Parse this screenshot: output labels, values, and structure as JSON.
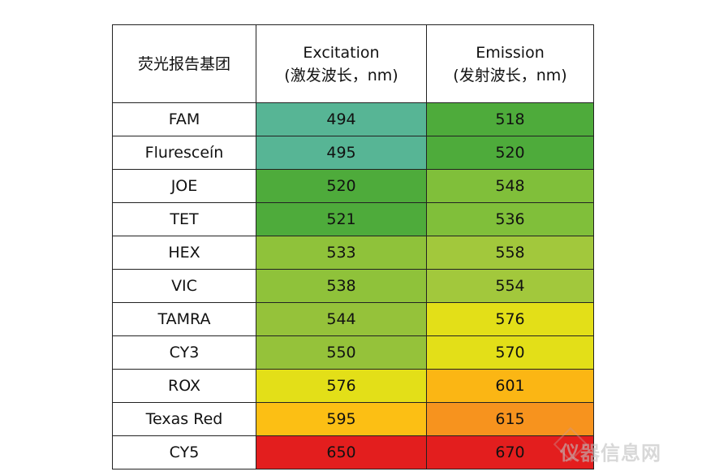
{
  "header": {
    "col1": "荧光报告基团",
    "col2_line1": "Excitation",
    "col2_line2": "(激发波长，nm)",
    "col3_line1": "Emission",
    "col3_line2": "(发射波长，nm)"
  },
  "rows": [
    {
      "name": "FAM",
      "ex": "494",
      "em": "518",
      "ex_color": "#57b595",
      "em_color": "#4eab3b"
    },
    {
      "name": "Fluresceín",
      "ex": "495",
      "em": "520",
      "ex_color": "#57b595",
      "em_color": "#4eab3b"
    },
    {
      "name": "JOE",
      "ex": "520",
      "em": "548",
      "ex_color": "#4eab3b",
      "em_color": "#80bf3a"
    },
    {
      "name": "TET",
      "ex": "521",
      "em": "536",
      "ex_color": "#4eab3b",
      "em_color": "#80bf3a"
    },
    {
      "name": "HEX",
      "ex": "533",
      "em": "558",
      "ex_color": "#8fc23a",
      "em_color": "#a2c83c"
    },
    {
      "name": "VIC",
      "ex": "538",
      "em": "554",
      "ex_color": "#8fc23a",
      "em_color": "#a2c83c"
    },
    {
      "name": "TAMRA",
      "ex": "544",
      "em": "576",
      "ex_color": "#95c23a",
      "em_color": "#e3df18"
    },
    {
      "name": "CY3",
      "ex": "550",
      "em": "570",
      "ex_color": "#95c23a",
      "em_color": "#e3df18"
    },
    {
      "name": "ROX",
      "ex": "576",
      "em": "601",
      "ex_color": "#e3df18",
      "em_color": "#fbb614"
    },
    {
      "name": "Texas Red",
      "ex": "595",
      "em": "615",
      "ex_color": "#fcbf14",
      "em_color": "#f7931e"
    },
    {
      "name": "CY5",
      "ex": "650",
      "em": "670",
      "ex_color": "#e31e1e",
      "em_color": "#e31e1e"
    }
  ],
  "watermark": "仪器信息网"
}
